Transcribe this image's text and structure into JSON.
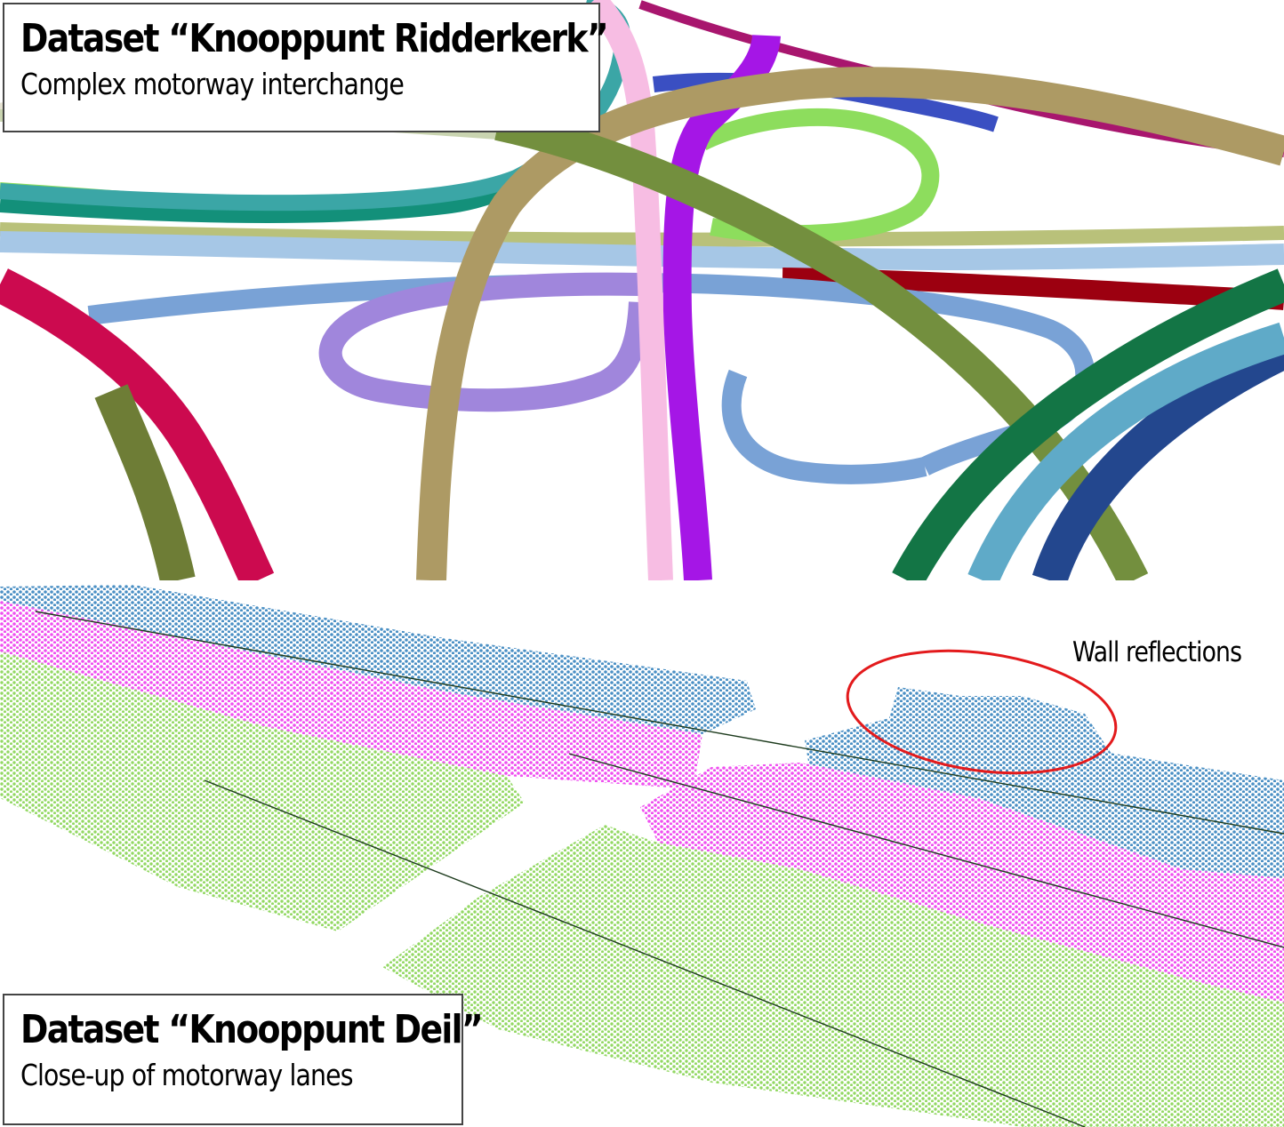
{
  "top_panel": {
    "title": "Dataset “Knooppunt Ridderkerk”",
    "subtitle": "Complex motorway interchange"
  },
  "bottom_panel": {
    "title": "Dataset “Knooppunt Deil”",
    "subtitle": "Close-up of motorway lanes",
    "annotation": "Wall reflections",
    "annotation_color": "#e31a1c"
  },
  "colors": {
    "blue_lane": "#4a8fc4",
    "magenta_lane": "#ef4ef0",
    "green_lane": "#92d862",
    "crimson": "#cc0a4f",
    "olive": "#6e7d36",
    "tan": "#ad9a64",
    "pink": "#f7bde3",
    "purple": "#a516e6",
    "lavender": "#a086dc",
    "steel_blue": "#79a2d6",
    "light_blue": "#a6c7e6",
    "teal": "#3ba6a6",
    "dark_teal": "#13907a",
    "lime": "#8ddd5d",
    "khaki": "#b9c17a",
    "dark_red": "#9c0010",
    "dark_green": "#137545",
    "sky_blue": "#5faac8",
    "navy": "#23478e",
    "royal_blue": "#3a4fc2",
    "maroon_pink": "#a8166e",
    "olive_green": "#738f3e"
  }
}
